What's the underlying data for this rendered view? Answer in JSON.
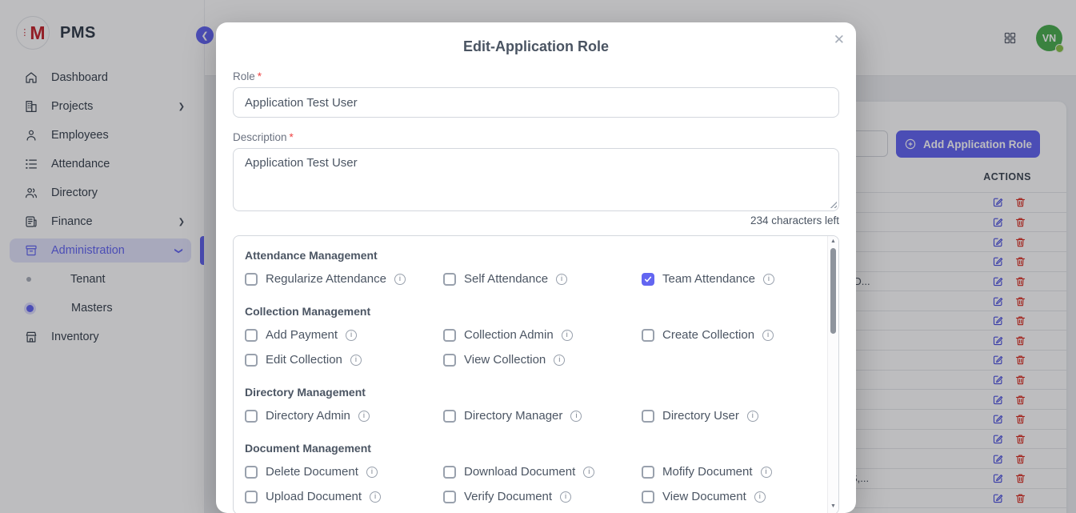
{
  "app": {
    "name": "PMS",
    "logo_letter": "M"
  },
  "topbar": {
    "avatar_initials": "VN",
    "grid_icon": "grid-icon",
    "status": "online"
  },
  "sidebar": {
    "items": [
      {
        "label": "Dashboard",
        "icon": "home-icon",
        "has_submenu": false,
        "active": false
      },
      {
        "label": "Projects",
        "icon": "projects-icon",
        "has_submenu": true,
        "active": false
      },
      {
        "label": "Employees",
        "icon": "employees-icon",
        "has_submenu": false,
        "active": false
      },
      {
        "label": "Attendance",
        "icon": "attendance-icon",
        "has_submenu": false,
        "active": false
      },
      {
        "label": "Directory",
        "icon": "directory-icon",
        "has_submenu": false,
        "active": false
      },
      {
        "label": "Finance",
        "icon": "finance-icon",
        "has_submenu": true,
        "active": false
      },
      {
        "label": "Administration",
        "icon": "administration-icon",
        "has_submenu": true,
        "expanded": true,
        "active": true
      },
      {
        "label": "Inventory",
        "icon": "inventory-icon",
        "has_submenu": false,
        "active": false
      }
    ],
    "admin_children": [
      {
        "label": "Tenant",
        "active": false
      },
      {
        "label": "Masters",
        "active": true
      }
    ]
  },
  "background_page": {
    "add_button_label": "Add Application Role",
    "add_button_icon": "plus-circle-icon",
    "table": {
      "actions_header": "ACTIONS",
      "row_action_icons": [
        "edit-icon",
        "trash-icon"
      ],
      "rows": [
        {
          "fragment": ""
        },
        {
          "fragment": ""
        },
        {
          "fragment": ""
        },
        {
          "fragment": ""
        },
        {
          "fragment": "(D..."
        },
        {
          "fragment": ""
        },
        {
          "fragment": ""
        },
        {
          "fragment": ""
        },
        {
          "fragment": ""
        },
        {
          "fragment": ""
        },
        {
          "fragment": ""
        },
        {
          "fragment": ""
        },
        {
          "fragment": ""
        },
        {
          "fragment": ""
        },
        {
          "fragment": "S,..."
        },
        {
          "fragment": ""
        },
        {
          "fragment": ""
        }
      ]
    }
  },
  "modal": {
    "title": "Edit-Application Role",
    "close_glyph": "✕",
    "required_mark": "*",
    "role": {
      "label": "Role",
      "value": "Application Test User"
    },
    "description": {
      "label": "Description",
      "value": "Application Test User",
      "chars_left": "234 characters left"
    },
    "info_icon": "info-icon",
    "permission_sections": [
      {
        "title": "Attendance Management",
        "items": [
          {
            "label": "Regularize Attendance",
            "checked": false
          },
          {
            "label": "Self Attendance",
            "checked": false
          },
          {
            "label": "Team Attendance",
            "checked": true
          }
        ]
      },
      {
        "title": "Collection Management",
        "items": [
          {
            "label": "Add Payment",
            "checked": false
          },
          {
            "label": "Collection Admin",
            "checked": false
          },
          {
            "label": "Create Collection",
            "checked": false
          },
          {
            "label": "Edit Collection",
            "checked": false
          },
          {
            "label": "View Collection",
            "checked": false
          }
        ]
      },
      {
        "title": "Directory Management",
        "items": [
          {
            "label": "Directory Admin",
            "checked": false
          },
          {
            "label": "Directory Manager",
            "checked": false
          },
          {
            "label": "Directory User",
            "checked": false
          }
        ]
      },
      {
        "title": "Document Management",
        "items": [
          {
            "label": "Delete Document",
            "checked": false
          },
          {
            "label": "Download Document",
            "checked": false
          },
          {
            "label": "Mofify Document",
            "checked": false
          },
          {
            "label": "Upload Document",
            "checked": false
          },
          {
            "label": "Verify Document",
            "checked": false
          },
          {
            "label": "View Document",
            "checked": false
          }
        ]
      }
    ]
  },
  "colors": {
    "accent_indigo": "#6366f1",
    "avatar_green": "#4caf50",
    "status_green": "#8bc34a",
    "delete_red": "#d92c20",
    "edit_indigo": "#4a4fe0",
    "logo_red": "#c4262e",
    "required_red": "#ef4444"
  }
}
